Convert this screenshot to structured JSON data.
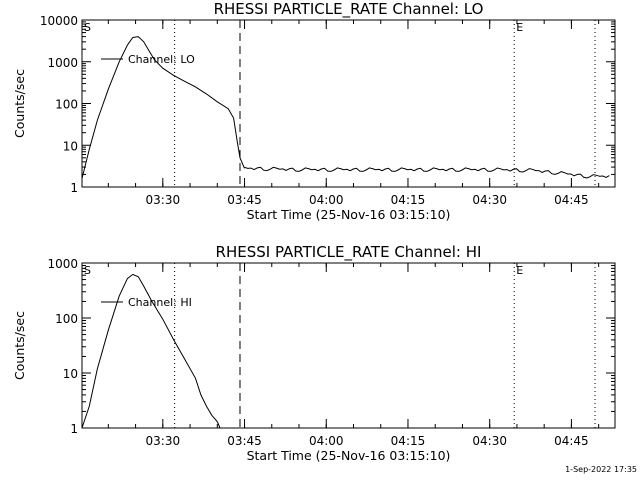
{
  "chart_data": [
    {
      "type": "line",
      "title": "RHESSI PARTICLE_RATE Channel: LO",
      "xlabel": "Start Time (25-Nov-16 03:15:10)",
      "ylabel": "Counts/sec",
      "yscale": "log",
      "ylim": [
        1,
        10000
      ],
      "ytick_labels": [
        "1",
        "10",
        "100",
        "1000",
        "10000"
      ],
      "xlim": [
        "03:15:10",
        "04:53:00"
      ],
      "xtick_labels": [
        "03:30",
        "03:45",
        "04:00",
        "04:15",
        "04:30",
        "04:45"
      ],
      "legend": {
        "label": "Channel: LO",
        "placement": "top-left"
      },
      "markers": [
        {
          "label": "S",
          "time": "03:15:10",
          "style": "none"
        },
        {
          "label": "E",
          "time": "04:34:30",
          "style": "dotted"
        }
      ],
      "vertical_lines": [
        {
          "time": "03:32:10",
          "style": "dotted"
        },
        {
          "time": "03:44:10",
          "style": "dashed"
        },
        {
          "time": "04:49:20",
          "style": "dotted"
        }
      ],
      "series": [
        {
          "name": "Channel: LO",
          "x": [
            "03:15:10",
            "03:16:30",
            "03:18:00",
            "03:20:00",
            "03:22:00",
            "03:23:30",
            "03:24:30",
            "03:25:30",
            "03:26:30",
            "03:27:30",
            "03:28:30",
            "03:30:00",
            "03:32:00",
            "03:34:00",
            "03:36:00",
            "03:38:00",
            "03:40:00",
            "03:42:00",
            "03:43:00",
            "03:43:40",
            "03:44:10",
            "03:45:00",
            "03:50:00",
            "03:55:00",
            "04:00:00",
            "04:10:00",
            "04:20:00",
            "04:30:00",
            "04:38:00",
            "04:42:00",
            "04:45:00",
            "04:48:00",
            "04:52:30"
          ],
          "y": [
            1.6,
            8,
            40,
            220,
            1000,
            2500,
            3800,
            4000,
            3000,
            1800,
            1100,
            700,
            470,
            340,
            250,
            170,
            110,
            75,
            45,
            12,
            5,
            2.8,
            2.7,
            2.6,
            2.6,
            2.6,
            2.6,
            2.6,
            2.5,
            2.2,
            2.0,
            1.8,
            1.8
          ]
        }
      ]
    },
    {
      "type": "line",
      "title": "RHESSI PARTICLE_RATE Channel: HI",
      "xlabel": "Start Time (25-Nov-16 03:15:10)",
      "ylabel": "Counts/sec",
      "yscale": "log",
      "ylim": [
        1,
        1000
      ],
      "ytick_labels": [
        "1",
        "10",
        "100",
        "1000"
      ],
      "xlim": [
        "03:15:10",
        "04:53:00"
      ],
      "xtick_labels": [
        "03:30",
        "03:45",
        "04:00",
        "04:15",
        "04:30",
        "04:45"
      ],
      "legend": {
        "label": "Channel: HI",
        "placement": "top-left"
      },
      "markers": [
        {
          "label": "S",
          "time": "03:15:10",
          "style": "none"
        },
        {
          "label": "E",
          "time": "04:34:30",
          "style": "dotted"
        }
      ],
      "vertical_lines": [
        {
          "time": "03:32:10",
          "style": "dotted"
        },
        {
          "time": "03:44:10",
          "style": "dashed"
        },
        {
          "time": "04:49:20",
          "style": "dotted"
        }
      ],
      "series": [
        {
          "name": "Channel: HI",
          "x": [
            "03:15:10",
            "03:16:30",
            "03:18:00",
            "03:20:00",
            "03:22:00",
            "03:23:30",
            "03:24:30",
            "03:25:30",
            "03:26:30",
            "03:28:00",
            "03:30:00",
            "03:32:00",
            "03:34:00",
            "03:36:00",
            "03:37:00",
            "03:38:00",
            "03:39:00",
            "03:40:00",
            "03:40:30"
          ],
          "y": [
            1.0,
            2.5,
            12,
            60,
            250,
            520,
            620,
            560,
            380,
            200,
            95,
            40,
            18,
            8,
            4,
            2.5,
            1.7,
            1.3,
            1.0
          ]
        }
      ]
    }
  ],
  "footer": {
    "date_stamp": "1-Sep-2022 17:35"
  }
}
